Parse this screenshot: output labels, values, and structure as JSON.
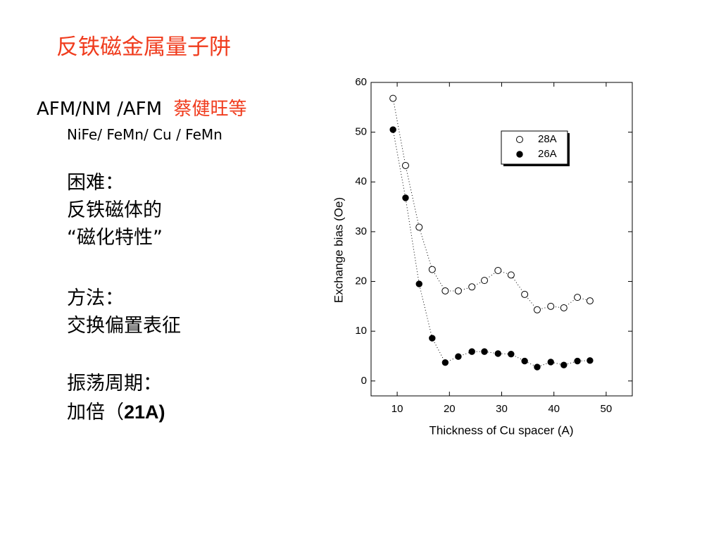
{
  "slide": {
    "title": "反铁磁金属量子阱",
    "line1": "AFM/NM /AFM",
    "authors": "蔡健旺等",
    "line2": "NiFe/ FeMn/ Cu / FeMn",
    "notes": [
      "困难：",
      "反铁磁体的",
      "“磁化特性”",
      "方法：",
      "交换偏置表征",
      "振荡周期："
    ],
    "last": "加倍（",
    "last_bold": "21A)"
  },
  "chart_data": {
    "type": "scatter",
    "xlabel": "Thickness of Cu spacer (A)",
    "ylabel": "Exchange bias (Oe)",
    "xlim": [
      5,
      55
    ],
    "xticks": [
      10,
      20,
      30,
      40,
      50
    ],
    "ylim": [
      -3,
      60
    ],
    "yticks": [
      0,
      10,
      20,
      30,
      40,
      50,
      60
    ],
    "legend": "upper right",
    "series": [
      {
        "name": "28A",
        "color": "#000000",
        "marker": "open",
        "x": [
          9.2,
          11.6,
          14.2,
          16.7,
          19.2,
          21.7,
          24.3,
          26.7,
          29.3,
          31.8,
          34.4,
          36.8,
          39.4,
          41.9,
          44.5,
          46.9
        ],
        "values": [
          56.8,
          43.3,
          30.9,
          22.4,
          18.1,
          18.1,
          18.9,
          20.2,
          22.2,
          21.3,
          17.4,
          14.3,
          15.0,
          14.7,
          16.8,
          16.1
        ]
      },
      {
        "name": "26A",
        "color": "#000000",
        "marker": "filled",
        "x": [
          9.2,
          11.6,
          14.2,
          16.7,
          19.2,
          21.7,
          24.3,
          26.7,
          29.3,
          31.8,
          34.4,
          36.8,
          39.4,
          41.9,
          44.5,
          46.9
        ],
        "values": [
          50.5,
          36.8,
          19.5,
          8.6,
          3.7,
          4.9,
          5.9,
          5.9,
          5.5,
          5.4,
          4.0,
          2.8,
          3.8,
          3.2,
          4.0,
          4.1
        ]
      }
    ]
  }
}
